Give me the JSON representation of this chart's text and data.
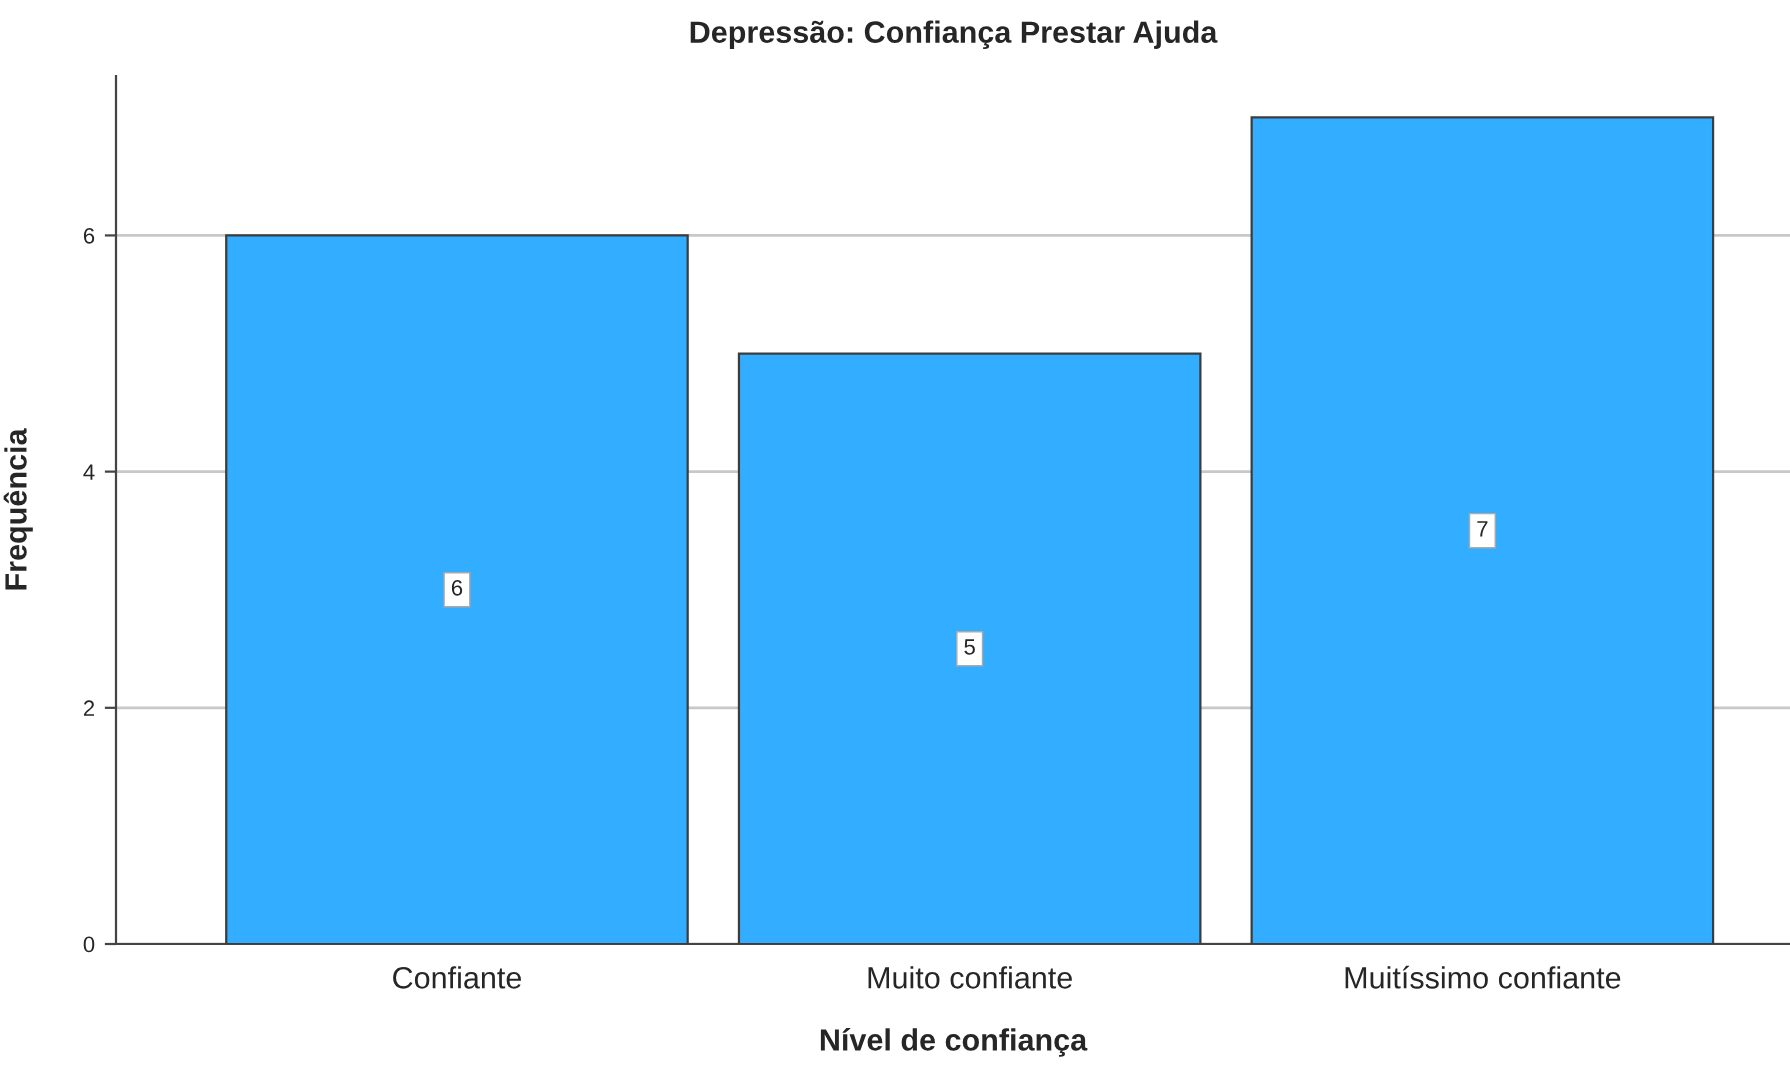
{
  "chart_data": {
    "type": "bar",
    "title": "Depressão: Confiança Prestar Ajuda",
    "xlabel": "Nível de confiança",
    "ylabel": "Frequência",
    "categories": [
      "Confiante",
      "Muito confiante",
      "Muitíssimo confiante"
    ],
    "values": [
      6,
      5,
      7
    ],
    "color": "#33adff",
    "ylim": [
      0,
      7.35
    ],
    "yticks": [
      0,
      2,
      4,
      6
    ],
    "grid": "y",
    "data_labels": true
  }
}
